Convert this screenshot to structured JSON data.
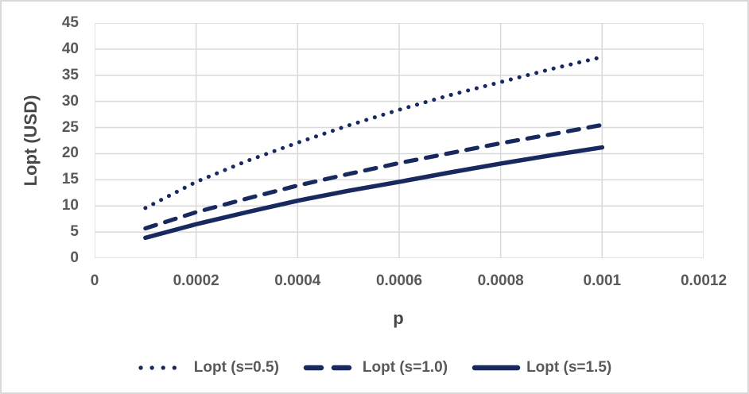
{
  "chart_data": {
    "type": "line",
    "title": "",
    "xlabel": "p",
    "ylabel": "Lopt (USD)",
    "xlim": [
      0,
      0.0012
    ],
    "ylim": [
      0,
      45
    ],
    "grid": true,
    "legend_position": "bottom",
    "x_tick_labels": [
      "0",
      "0.0002",
      "0.0004",
      "0.0006",
      "0.0008",
      "0.001",
      "0.0012"
    ],
    "y_tick_labels": [
      "0",
      "5",
      "10",
      "15",
      "20",
      "25",
      "30",
      "35",
      "40",
      "45"
    ],
    "x": [
      0.0001,
      0.0002,
      0.0003,
      0.0004,
      0.0005,
      0.0006,
      0.0007,
      0.0008,
      0.0009,
      0.001
    ],
    "series": [
      {
        "name": "Lopt (s=0.5)",
        "line_style": "dotted",
        "values": [
          9.6,
          14.6,
          18.6,
          22.1,
          25.4,
          28.4,
          31.2,
          33.7,
          36.2,
          38.5
        ]
      },
      {
        "name": "Lopt (s=1.0)",
        "line_style": "dashed",
        "values": [
          5.7,
          8.8,
          11.4,
          13.9,
          16.1,
          18.2,
          20.1,
          22.0,
          23.7,
          25.5
        ]
      },
      {
        "name": "Lopt (s=1.5)",
        "line_style": "solid",
        "values": [
          3.9,
          6.5,
          8.8,
          11.0,
          12.9,
          14.6,
          16.4,
          18.1,
          19.7,
          21.2
        ]
      }
    ],
    "colors": {
      "line": "#17295E",
      "grid": "#D9D9D9",
      "tick_text": "#595959",
      "axis_title_text": "#484848",
      "chart_border": "#D9D9D9"
    }
  }
}
